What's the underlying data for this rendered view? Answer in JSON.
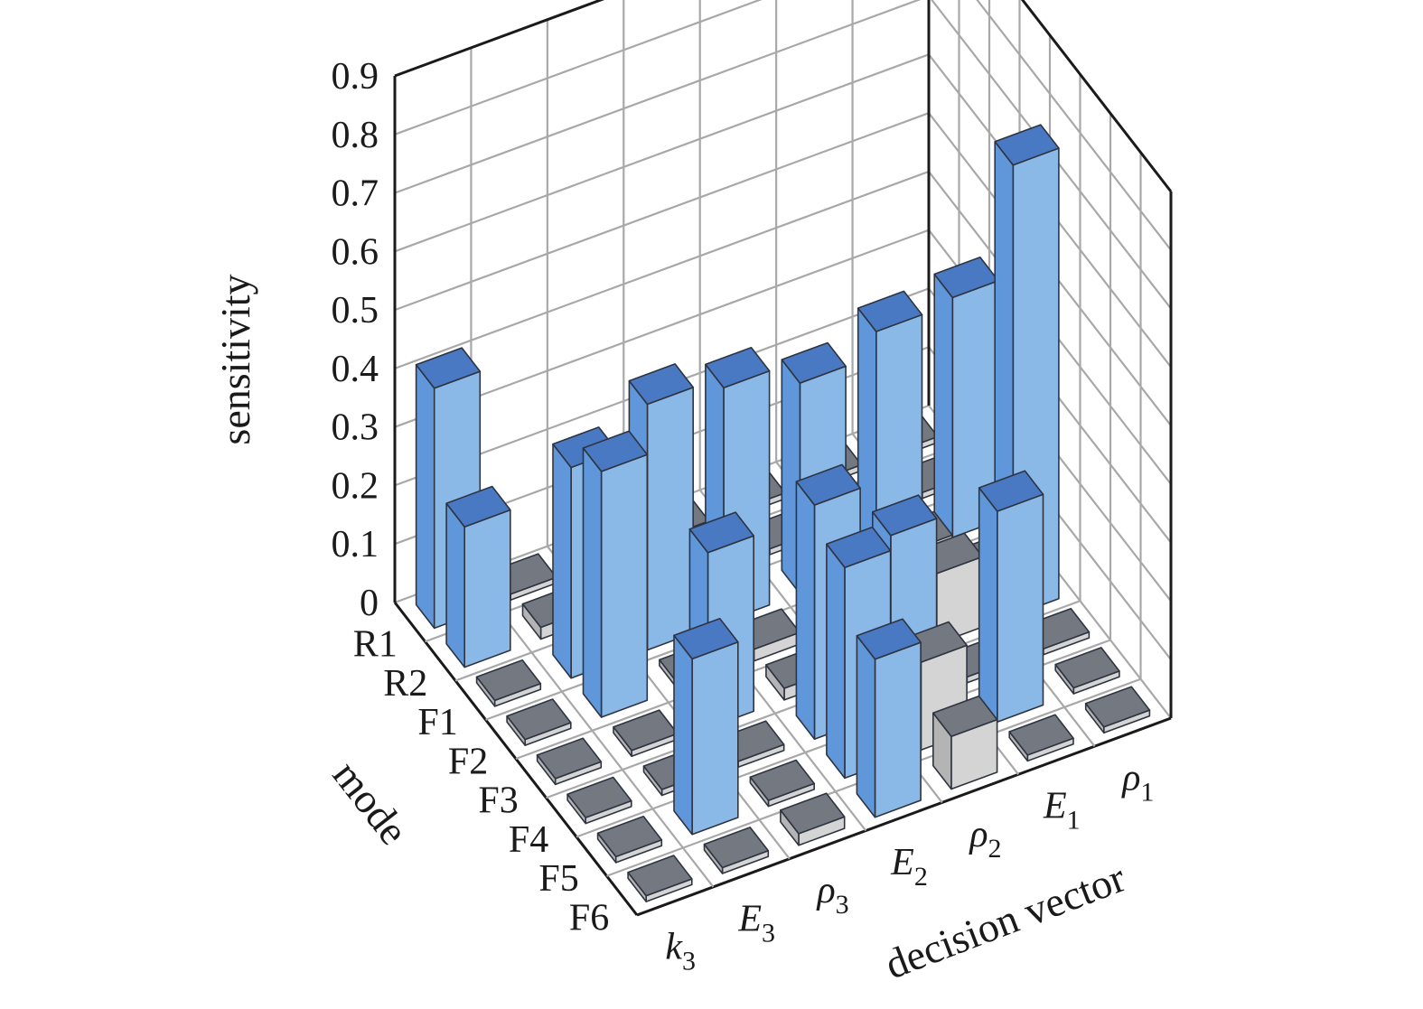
{
  "chart_data": {
    "type": "bar3d",
    "zlabel": "sensitivity",
    "ylabel": "mode",
    "xlabel": "decision vector",
    "zlim": [
      0,
      0.9
    ],
    "zticks": [
      "0",
      "0.1",
      "0.2",
      "0.3",
      "0.4",
      "0.5",
      "0.6",
      "0.7",
      "0.8",
      "0.9"
    ],
    "grid": true,
    "modes": [
      "R1",
      "R2",
      "F1",
      "F2",
      "F3",
      "F4",
      "F5",
      "F6"
    ],
    "decision_vector": [
      {
        "base": "k",
        "sub": "3"
      },
      {
        "base": "E",
        "sub": "3"
      },
      {
        "base": "ρ",
        "sub": "3"
      },
      {
        "base": "E",
        "sub": "2"
      },
      {
        "base": "ρ",
        "sub": "2"
      },
      {
        "base": "E",
        "sub": "1"
      },
      {
        "base": "ρ",
        "sub": "1"
      }
    ],
    "values": [
      [
        0.41,
        0.01,
        0.02,
        0.01,
        0.01,
        0.01,
        0.01
      ],
      [
        0.24,
        0.02,
        0.02,
        0.02,
        0.01,
        0.01,
        0.01
      ],
      [
        0.01,
        0.36,
        0.42,
        0.4,
        0.36,
        0.4,
        0.41
      ],
      [
        0.01,
        0.42,
        0.01,
        0.02,
        0.01,
        0.09,
        0.01
      ],
      [
        0.01,
        0.01,
        0.3,
        0.02,
        0.01,
        0.12,
        0.77
      ],
      [
        0.01,
        0.01,
        0.01,
        0.4,
        0.3,
        0.01,
        0.01
      ],
      [
        0.01,
        0.3,
        0.01,
        0.36,
        0.15,
        0.36,
        0.01
      ],
      [
        0.01,
        0.01,
        0.02,
        0.27,
        0.09,
        0.01,
        0.01
      ]
    ],
    "colors": {
      "bar_top": "#4a79c3",
      "bar_front": "#8ab9e8",
      "bar_side": "#5f97da",
      "small_top": "#747880",
      "small_front": "#d4d4d4",
      "small_side": "#b4b4b4",
      "edge": "#2e3440"
    }
  }
}
